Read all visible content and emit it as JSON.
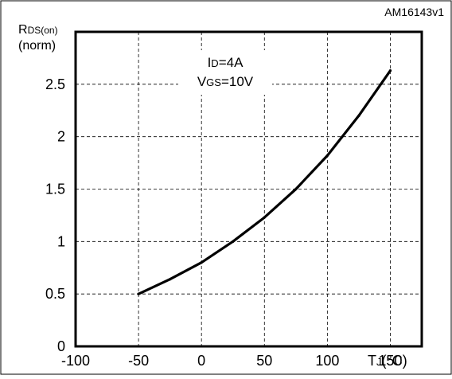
{
  "figure_id": "AM16143v1",
  "chart_data": {
    "type": "line",
    "ylabel_main": "R",
    "ylabel_sub": "DS(on)",
    "ylabel_unit": "(norm)",
    "xlabel_main": "T",
    "xlabel_sub": "J",
    "xlabel_unit": "(°C)",
    "annotation": {
      "line1_main": "I",
      "line1_sub": "D",
      "line1_rest": "=4A",
      "line2_main": "V",
      "line2_sub": "GS",
      "line2_rest": "=10V"
    },
    "xlim": [
      -100,
      175
    ],
    "ylim": [
      0,
      3.0
    ],
    "x_ticks": [
      -100,
      -50,
      0,
      50,
      100,
      150
    ],
    "x_tick_labels": [
      "-100",
      "-50",
      "0",
      "50",
      "100",
      "150"
    ],
    "y_ticks": [
      0,
      0.5,
      1,
      1.5,
      2,
      2.5
    ],
    "y_tick_labels": [
      "0",
      "0.5",
      "1",
      "1.5",
      "2",
      "2.5"
    ],
    "grid": true,
    "series": [
      {
        "x": [
          -50,
          -25,
          0,
          25,
          50,
          75,
          100,
          125,
          150
        ],
        "y": [
          0.5,
          0.64,
          0.8,
          1.0,
          1.23,
          1.5,
          1.82,
          2.2,
          2.63
        ]
      }
    ]
  }
}
